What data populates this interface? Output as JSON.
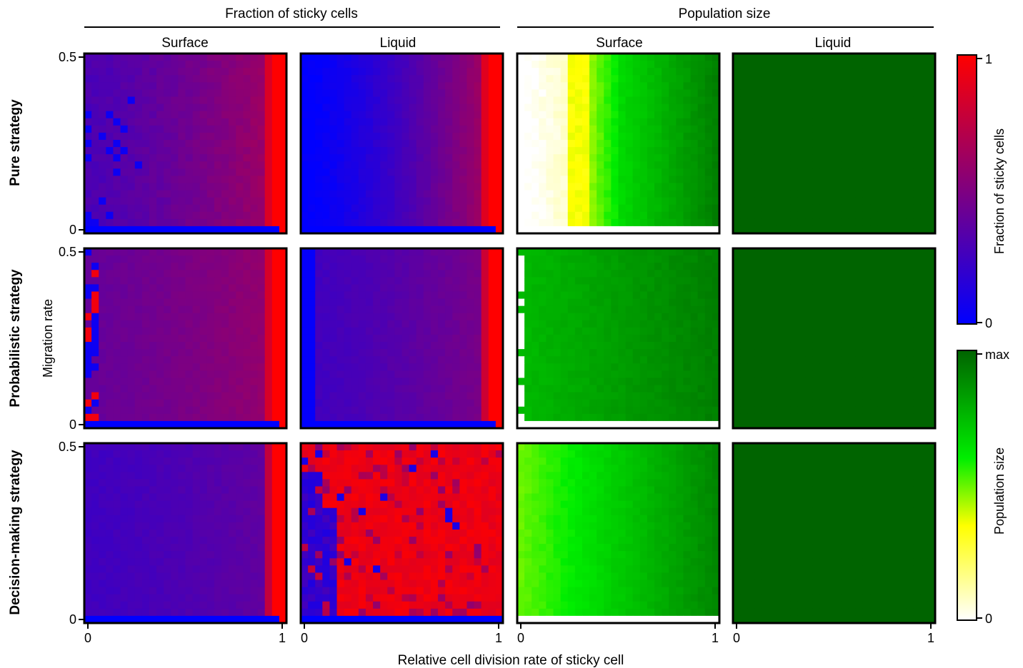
{
  "figure": {
    "group_headers": [
      "Fraction of sticky cells",
      "Population size"
    ],
    "column_headers": [
      "Surface",
      "Liquid",
      "Surface",
      "Liquid"
    ],
    "row_labels": [
      "Pure strategy",
      "Probabilistic strategy",
      "Decision-making strategy"
    ],
    "xlabel": "Relative cell division rate of sticky cell",
    "ylabel": "Migration rate",
    "colorbar_fraction": {
      "label": "Fraction of sticky cells",
      "ticks": [
        "1",
        "0"
      ]
    },
    "colorbar_population": {
      "label": "Population size",
      "ticks": [
        "max",
        "0"
      ]
    }
  },
  "chart_data": {
    "type": "heatmap",
    "x_tick_labels": [
      "0",
      "1"
    ],
    "y_tick_labels": [
      "0.5",
      "0"
    ],
    "x_range": [
      0,
      1
    ],
    "y_range": [
      0,
      0.5
    ],
    "grid_size": [
      28,
      25
    ],
    "colors": {
      "fraction_low": "#0000ff",
      "fraction_high": "#ff0000",
      "population_zero": "#ffffff",
      "population_mid_low": "#ffff00",
      "population_mid_high": "#00ee00",
      "population_max": "#006400"
    },
    "panels": [
      {
        "row": "Pure strategy",
        "column": "Surface",
        "metric": "Fraction of sticky cells",
        "left_value": 0.3,
        "right_value": 0.65,
        "edge_value": 1.0,
        "bottom_row_value": 0.0,
        "noise": 0.06,
        "blue_noise": 0.2
      },
      {
        "row": "Pure strategy",
        "column": "Liquid",
        "metric": "Fraction of sticky cells",
        "left_value": 0.0,
        "right_value": 0.7,
        "edge_value": 1.0,
        "bottom_row_value": 0.0,
        "noise": 0.0,
        "blue_noise": 0.0
      },
      {
        "row": "Pure strategy",
        "column": "Surface",
        "metric": "Population size",
        "white_until": 0.25,
        "yellow_at": 0.35,
        "bright_green_at": 0.5,
        "dark_from": 0.85,
        "bottom_row_value": 0.0
      },
      {
        "row": "Pure strategy",
        "column": "Liquid",
        "metric": "Population size",
        "uniform_value": 1.0
      },
      {
        "row": "Probabilistic strategy",
        "column": "Surface",
        "metric": "Fraction of sticky cells",
        "left_value": 0.4,
        "right_value": 0.6,
        "edge_value": 1.0,
        "bottom_row_value": 0.0,
        "left_strip": "mixed"
      },
      {
        "row": "Probabilistic strategy",
        "column": "Liquid",
        "metric": "Fraction of sticky cells",
        "left_value": 0.25,
        "right_value": 0.5,
        "edge_value": 1.0,
        "bottom_row_value": 0.0,
        "left_strip": "low"
      },
      {
        "row": "Probabilistic strategy",
        "column": "Surface",
        "metric": "Population size",
        "left_value": 0.75,
        "right_value": 0.92,
        "bottom_row_value": 0.0,
        "left_strip": "zero"
      },
      {
        "row": "Probabilistic strategy",
        "column": "Liquid",
        "metric": "Population size",
        "uniform_value": 1.0
      },
      {
        "row": "Decision-making strategy",
        "column": "Surface",
        "metric": "Fraction of sticky cells",
        "left_value": 0.25,
        "right_value": 0.4,
        "edge_value": 1.0,
        "bottom_row_value": 0.0
      },
      {
        "row": "Decision-making strategy",
        "column": "Liquid",
        "metric": "Fraction of sticky cells",
        "pattern": "mostly_high_with_low_lower_left",
        "bottom_row_value": 0.0
      },
      {
        "row": "Decision-making strategy",
        "column": "Surface",
        "metric": "Population size",
        "left_value": 0.5,
        "right_value": 0.9,
        "bottom_row_value": 0.0
      },
      {
        "row": "Decision-making strategy",
        "column": "Liquid",
        "metric": "Population size",
        "uniform_value": 1.0
      }
    ]
  }
}
